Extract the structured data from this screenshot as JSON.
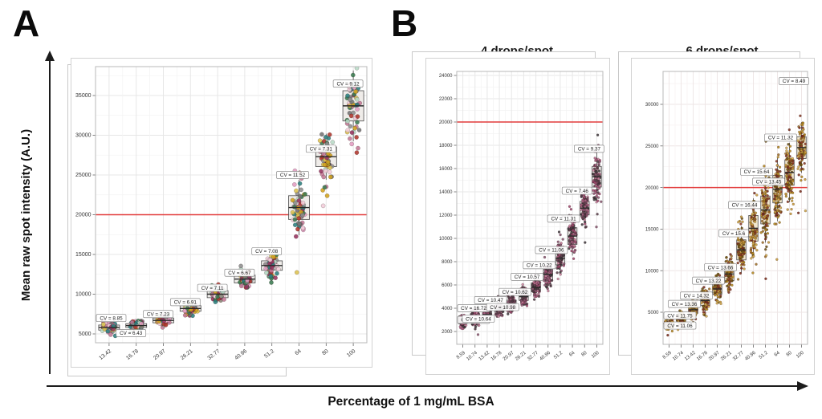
{
  "figure": {
    "panel_a_label": "A",
    "panel_b_label": "B",
    "y_axis_title": "Mean raw spot intensity (A.U.)",
    "x_axis_title": "Percentage of 1 mg/mL BSA",
    "reference_line_color": "#e23b3b"
  },
  "chart_data": [
    {
      "id": "panel-a",
      "type": "boxplot-jitter",
      "title": "",
      "xlabel": "Percentage of 1 mg/mL BSA",
      "ylabel": "Mean raw spot intensity (A.U.)",
      "x_categories": [
        "13.42",
        "16.78",
        "20.97",
        "26.21",
        "32.77",
        "40.96",
        "51.2",
        "64",
        "80",
        "100"
      ],
      "cv_labels": [
        "CV = 8.85",
        "CV = 6.43",
        "CV = 7.23",
        "CV = 6.91",
        "CV = 7.11",
        "CV = 6.67",
        "CV = 7.08",
        "CV = 11.52",
        "CV = 7.31",
        "CV = 9.12"
      ],
      "cv_values": [
        8.85,
        6.43,
        7.23,
        6.91,
        7.11,
        6.67,
        7.08,
        11.52,
        7.31,
        9.12
      ],
      "medians": [
        5800,
        6050,
        6700,
        8200,
        10000,
        11900,
        13600,
        20900,
        27300,
        33700
      ],
      "cv_label_y": [
        7000,
        5100,
        7500,
        9000,
        10800,
        12700,
        15400,
        25000,
        28300,
        36500
      ],
      "y_ticks": [
        5000,
        10000,
        15000,
        20000,
        25000,
        30000,
        35000
      ],
      "y_range": [
        3700,
        38600
      ],
      "ref_line": 20000,
      "ref_color": "#e23b3b",
      "box_fill": "#ece9e5",
      "point_palette": [
        "#2b7f7e",
        "#d2a31e",
        "#ae352c",
        "#e39cc1",
        "#96325e",
        "#3a7a50",
        "#8d8d8d",
        "#f2cdda",
        "#ddc150",
        "#747474",
        "#c37795",
        "#b7d9c6"
      ],
      "grid": true,
      "legend": "none"
    },
    {
      "id": "panel-b1",
      "type": "boxplot-jitter",
      "title": "4 drops/spot",
      "xlabel": "Percentage of 1 mg/mL BSA",
      "ylabel": "Mean raw spot intensity (A.U.)",
      "x_categories": [
        "8.59",
        "10.74",
        "13.42",
        "16.78",
        "20.97",
        "26.21",
        "32.77",
        "40.96",
        "51.2",
        "64",
        "80",
        "100"
      ],
      "cv_labels": [
        "CV = 11.32",
        "CV = 16.72",
        "CV = 10.64",
        "CV = 10.47",
        "CV = 10.98",
        "CV = 10.62",
        "CV = 10.57",
        "CV = 10.22",
        "CV = 11.06",
        "CV = 11.31",
        "CV = 7.46",
        "CV = 9.37"
      ],
      "cv_values": [
        11.32,
        16.72,
        10.64,
        10.47,
        10.98,
        10.62,
        10.57,
        10.22,
        11.06,
        11.31,
        7.46,
        9.37
      ],
      "medians": [
        2900,
        3200,
        3450,
        3900,
        4400,
        5000,
        5800,
        6900,
        8300,
        10200,
        12600,
        15300
      ],
      "cv_label_y": [
        3000,
        4000,
        3100,
        4700,
        4100,
        5400,
        6700,
        7700,
        9000,
        11700,
        14100,
        17700
      ],
      "y_ticks": [
        2000,
        4000,
        6000,
        8000,
        10000,
        12000,
        14000,
        16000,
        18000,
        20000,
        22000,
        24000
      ],
      "y_range": [
        900,
        24400
      ],
      "ref_line": 20000,
      "ref_color": "#e23b3b",
      "box_fill": "#e8e3e0",
      "point_palette": [
        "#4e3944",
        "#a24a70",
        "#c9849f",
        "#413a3f",
        "#8a5671",
        "#5e4450",
        "#b06487"
      ],
      "grid": true,
      "legend": "none"
    },
    {
      "id": "panel-b2",
      "type": "boxplot-jitter",
      "title": "6 drops/spot",
      "xlabel": "Percentage of 1 mg/mL BSA",
      "ylabel": "Mean raw spot intensity (A.U.)",
      "x_categories": [
        "8.59",
        "10.74",
        "13.42",
        "16.78",
        "20.97",
        "26.21",
        "32.77",
        "40.96",
        "51.2",
        "64",
        "80",
        "100"
      ],
      "cv_labels": [
        "CV = 11.06",
        "CV = 11.75",
        "CV = 13.36",
        "CV = 14.32",
        "CV = 13.22",
        "CV = 13.66",
        "CV = 15.6",
        "CV = 16.44",
        "CV = 15.64",
        "CV = 13.45",
        "CV = 11.32",
        "CV = 8.49"
      ],
      "cv_values": [
        11.06,
        11.75,
        13.36,
        14.32,
        13.22,
        13.66,
        15.6,
        16.44,
        15.64,
        13.45,
        11.32,
        8.49
      ],
      "medians": [
        3500,
        4200,
        5300,
        6400,
        7800,
        9600,
        12500,
        15100,
        17300,
        19800,
        21800,
        24800
      ],
      "cv_label_y": [
        3400,
        4600,
        6000,
        7000,
        8800,
        10400,
        14500,
        17900,
        21900,
        20700,
        26000,
        32800
      ],
      "y_ticks": [
        5000,
        10000,
        15000,
        20000,
        25000,
        30000
      ],
      "y_range": [
        1100,
        34000
      ],
      "ref_line": 20000,
      "ref_color": "#e23b3b",
      "box_fill": "#efe2c3",
      "point_palette": [
        "#b4861e",
        "#8a3a26",
        "#d1a94f",
        "#6d5313",
        "#a06f28",
        "#7c2e1c",
        "#c79a3a"
      ],
      "grid": true,
      "legend": "none"
    }
  ]
}
